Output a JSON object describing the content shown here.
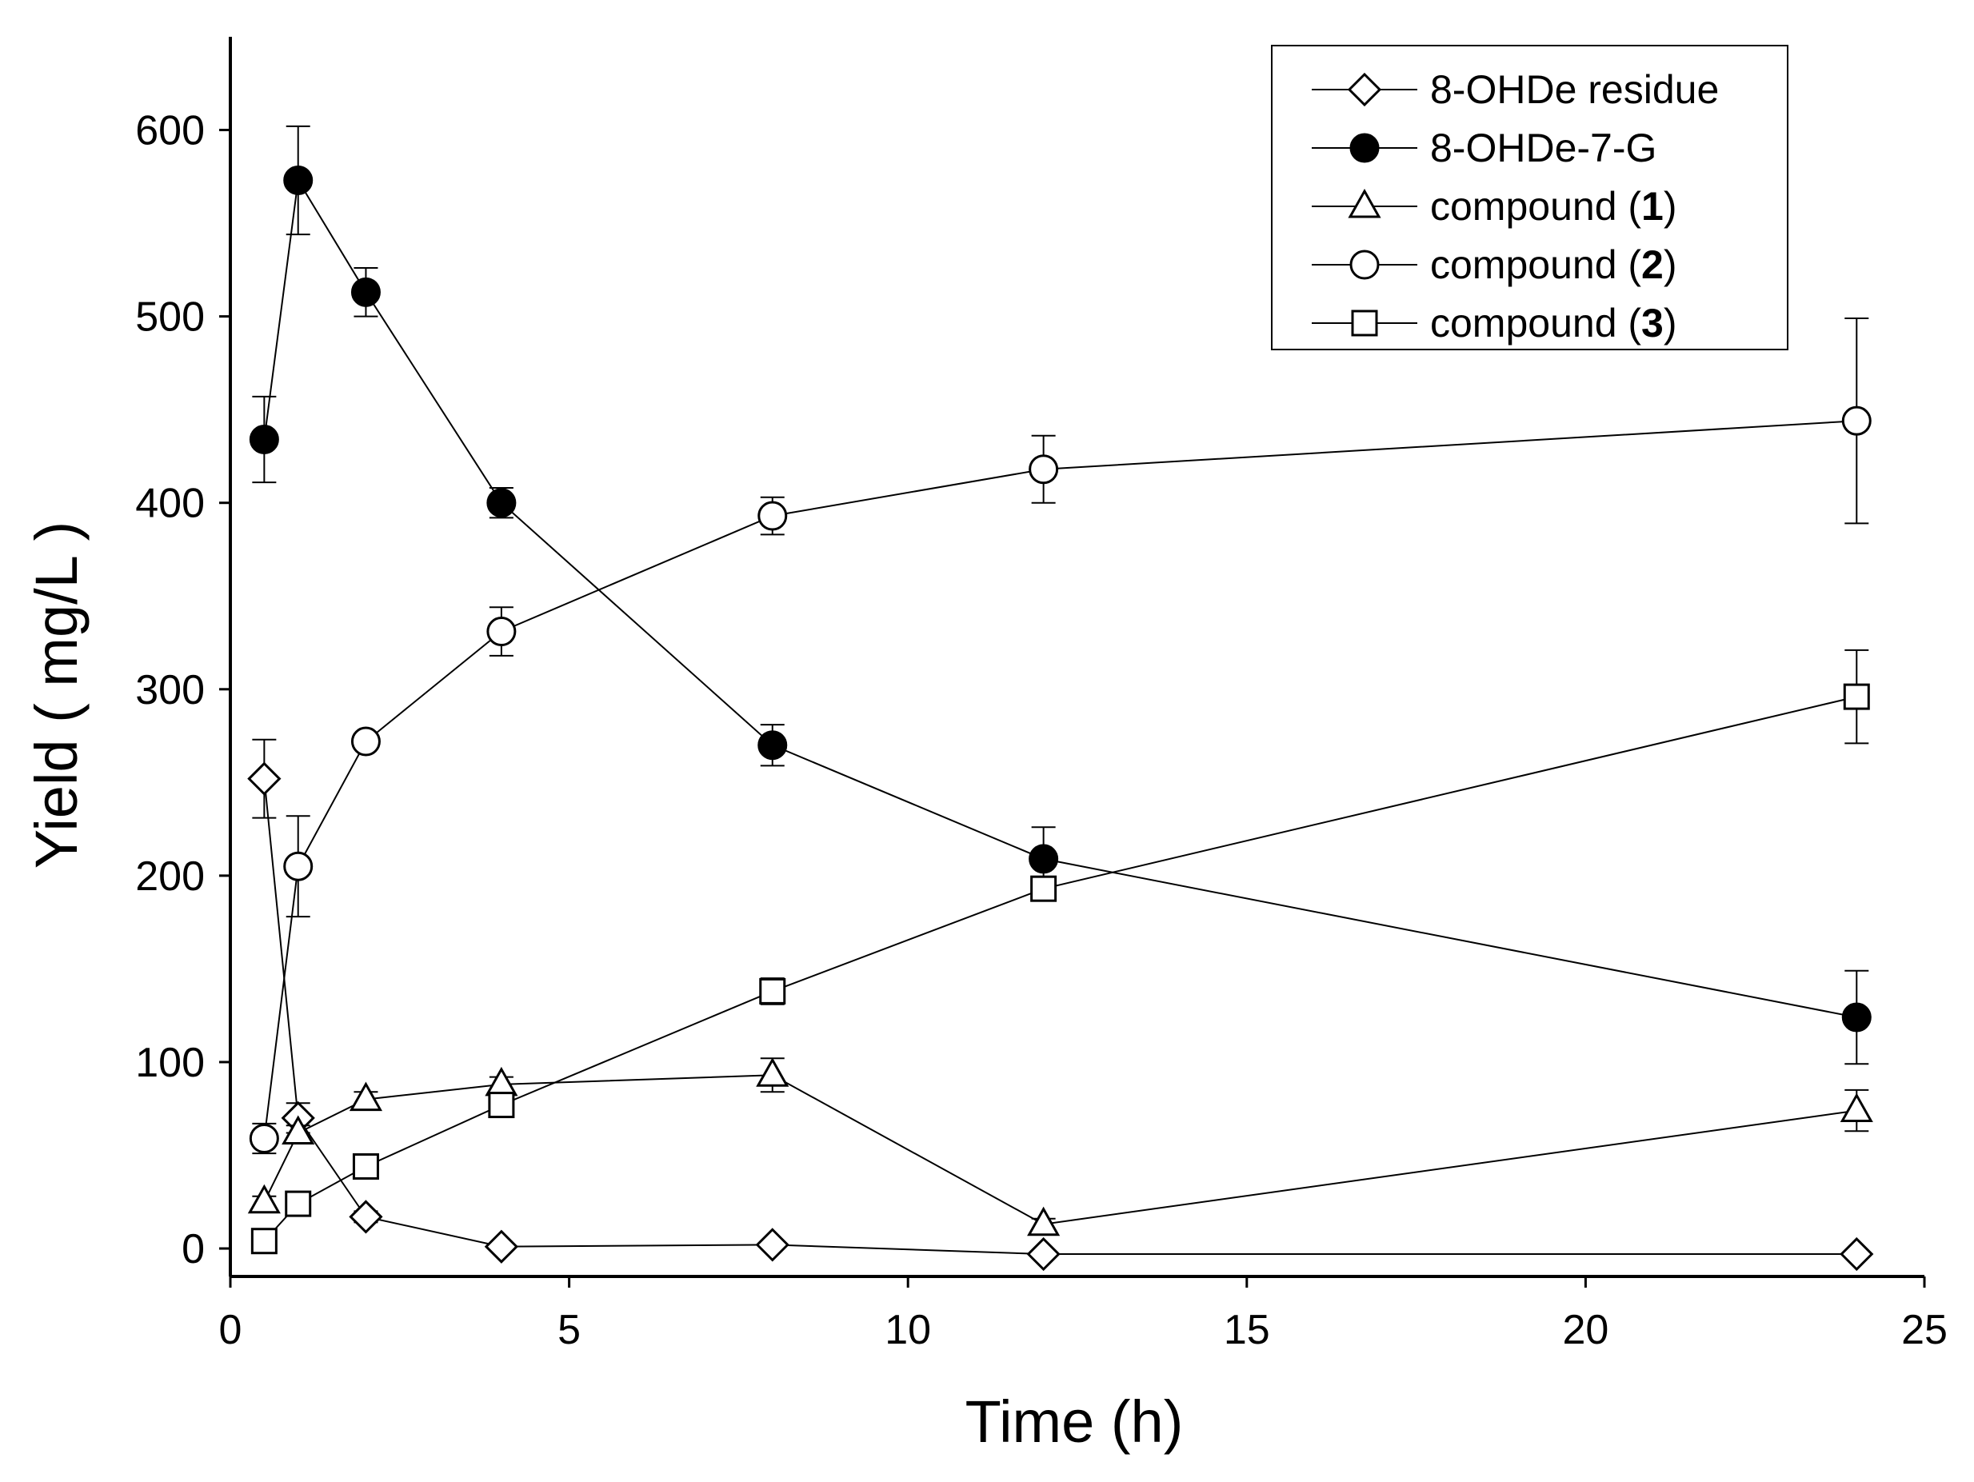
{
  "chart_data": {
    "type": "line",
    "title": "",
    "xlabel": "Time (h)",
    "ylabel": "Yield ( mg/L )",
    "xlim": [
      0,
      25
    ],
    "ylim": [
      -15,
      650
    ],
    "x_ticks": [
      "0",
      "5",
      "10",
      "15",
      "20",
      "25"
    ],
    "y_ticks": [
      "0",
      "100",
      "200",
      "300",
      "400",
      "500",
      "600"
    ],
    "x_tick_values": [
      0,
      5,
      10,
      15,
      20,
      25
    ],
    "y_tick_values": [
      0,
      100,
      200,
      300,
      400,
      500,
      600
    ],
    "grid": false,
    "legend_position": "top-right",
    "x": [
      0.5,
      1,
      2,
      4,
      8,
      12,
      24
    ],
    "series": [
      {
        "name": "8-OHDe residue",
        "legend_text": "8-OHDe residue",
        "legend_bold": "",
        "legend_suffix": "",
        "marker": "diamond",
        "values": [
          252,
          70,
          17,
          1,
          2,
          -3,
          -3
        ],
        "errors": [
          21,
          8,
          3,
          2,
          2,
          2,
          2
        ]
      },
      {
        "name": "8-OHDe-7-G",
        "legend_text": "8-OHDe-7-G",
        "legend_bold": "",
        "legend_suffix": "",
        "marker": "filled-circle",
        "values": [
          434,
          573,
          513,
          400,
          270,
          209,
          124
        ],
        "errors": [
          23,
          29,
          13,
          8,
          11,
          17,
          25
        ]
      },
      {
        "name": "compound (1)",
        "legend_text": "compound (",
        "legend_bold": "1",
        "legend_suffix": ")",
        "marker": "triangle",
        "values": [
          25,
          62,
          80,
          88,
          93,
          13,
          74
        ],
        "errors": [
          3,
          4,
          4,
          4,
          9,
          3,
          11
        ]
      },
      {
        "name": "compound (2)",
        "legend_text": "compound (",
        "legend_bold": "2",
        "legend_suffix": ")",
        "marker": "open-circle",
        "values": [
          59,
          205,
          272,
          331,
          393,
          418,
          444
        ],
        "errors": [
          8,
          27,
          4,
          13,
          10,
          18,
          55
        ]
      },
      {
        "name": "compound (3)",
        "legend_text": "compound (",
        "legend_bold": "3",
        "legend_suffix": ")",
        "marker": "square",
        "values": [
          4,
          24,
          44,
          77,
          138,
          193,
          296
        ],
        "errors": [
          2,
          2,
          2,
          5,
          7,
          5,
          25
        ]
      }
    ]
  }
}
